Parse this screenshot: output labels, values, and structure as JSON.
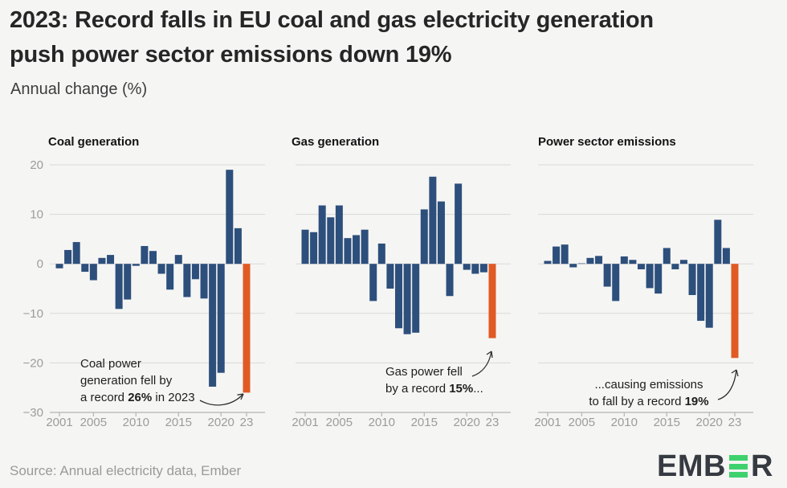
{
  "header": {
    "title_lines": [
      "2023: Record falls in EU coal and gas electricity generation",
      "push power sector emissions down 19%"
    ],
    "subtitle": "Annual change (%)"
  },
  "colors": {
    "background": "#f5f5f3",
    "bar_blue": "#2d4f7c",
    "bar_orange": "#e05a24",
    "gridline": "#d9d9d9",
    "axis_line": "#b4b4b4",
    "axis_label": "#9c9c9c",
    "annotation_arrow": "#2f2f2f",
    "logo_dark": "#363a41",
    "logo_green": "#3fd16e"
  },
  "axis": {
    "y_ticks": [
      20,
      10,
      0,
      -10,
      -20,
      -30
    ],
    "y_tick_labels": [
      "20",
      "10",
      "0",
      "−10",
      "−20",
      "−30"
    ],
    "x_tick_years": [
      2001,
      2005,
      2010,
      2015,
      2020,
      2023
    ],
    "x_tick_labels": [
      "2001",
      "2005",
      "2010",
      "2015",
      "2020",
      "23"
    ]
  },
  "chart_data": [
    {
      "type": "bar",
      "title": "Coal generation",
      "ylabel": "Annual change (%)",
      "ylim": [
        -30,
        20
      ],
      "grid": true,
      "highlight_year": 2023,
      "x": [
        2001,
        2002,
        2003,
        2004,
        2005,
        2006,
        2007,
        2008,
        2009,
        2010,
        2011,
        2012,
        2013,
        2014,
        2015,
        2016,
        2017,
        2018,
        2019,
        2020,
        2021,
        2022,
        2023
      ],
      "values": [
        -0.9,
        2.8,
        4.4,
        -1.6,
        -3.3,
        1.2,
        1.8,
        -9.1,
        -7.2,
        -0.4,
        3.6,
        2.6,
        -2.0,
        -5.2,
        1.8,
        -6.7,
        -3.1,
        -7.0,
        -24.8,
        -22.0,
        19.0,
        7.2,
        -26.0
      ],
      "annotation": {
        "lines": [
          [
            {
              "text": "Coal power",
              "bold": false
            }
          ],
          [
            {
              "text": "generation fell by",
              "bold": false
            }
          ],
          [
            {
              "text": "a record ",
              "bold": false
            },
            {
              "text": "26%",
              "bold": true
            },
            {
              "text": " in 2023",
              "bold": false
            }
          ]
        ]
      }
    },
    {
      "type": "bar",
      "title": "Gas generation",
      "ylabel": "Annual change (%)",
      "ylim": [
        -30,
        20
      ],
      "grid": true,
      "highlight_year": 2023,
      "x": [
        2001,
        2002,
        2003,
        2004,
        2005,
        2006,
        2007,
        2008,
        2009,
        2010,
        2011,
        2012,
        2013,
        2014,
        2015,
        2016,
        2017,
        2018,
        2019,
        2020,
        2021,
        2022,
        2023
      ],
      "values": [
        6.9,
        6.4,
        11.8,
        9.4,
        11.8,
        5.2,
        5.8,
        6.9,
        -7.5,
        4.1,
        -5.0,
        -13.0,
        -14.2,
        -13.9,
        11.0,
        17.6,
        12.6,
        -6.5,
        16.2,
        -1.2,
        -2.0,
        -1.7,
        -15.0
      ],
      "annotation": {
        "lines": [
          [
            {
              "text": "Gas power fell",
              "bold": false
            }
          ],
          [
            {
              "text": "by a record ",
              "bold": false
            },
            {
              "text": "15%",
              "bold": true
            },
            {
              "text": "...",
              "bold": false
            }
          ]
        ]
      }
    },
    {
      "type": "bar",
      "title": "Power sector emissions",
      "ylabel": "Annual change (%)",
      "ylim": [
        -30,
        20
      ],
      "grid": true,
      "highlight_year": 2023,
      "x": [
        2001,
        2002,
        2003,
        2004,
        2005,
        2006,
        2007,
        2008,
        2009,
        2010,
        2011,
        2012,
        2013,
        2014,
        2015,
        2016,
        2017,
        2018,
        2019,
        2020,
        2021,
        2022,
        2023
      ],
      "values": [
        0.6,
        3.5,
        3.9,
        -0.7,
        0.1,
        1.2,
        1.6,
        -4.6,
        -7.5,
        1.5,
        0.8,
        -1.1,
        -4.9,
        -6.0,
        3.2,
        -1.1,
        0.8,
        -6.3,
        -11.5,
        -12.9,
        8.9,
        3.2,
        -19.0
      ],
      "annotation": {
        "lines": [
          [
            {
              "text": "...causing emissions",
              "bold": false
            }
          ],
          [
            {
              "text": "to fall by a record ",
              "bold": false
            },
            {
              "text": "19%",
              "bold": true
            }
          ]
        ]
      }
    }
  ],
  "footer": {
    "source": "Source: Annual electricity data, Ember",
    "logo_prefix": "EMB",
    "logo_suffix": "R",
    "logo_full_text": "EMBER"
  }
}
